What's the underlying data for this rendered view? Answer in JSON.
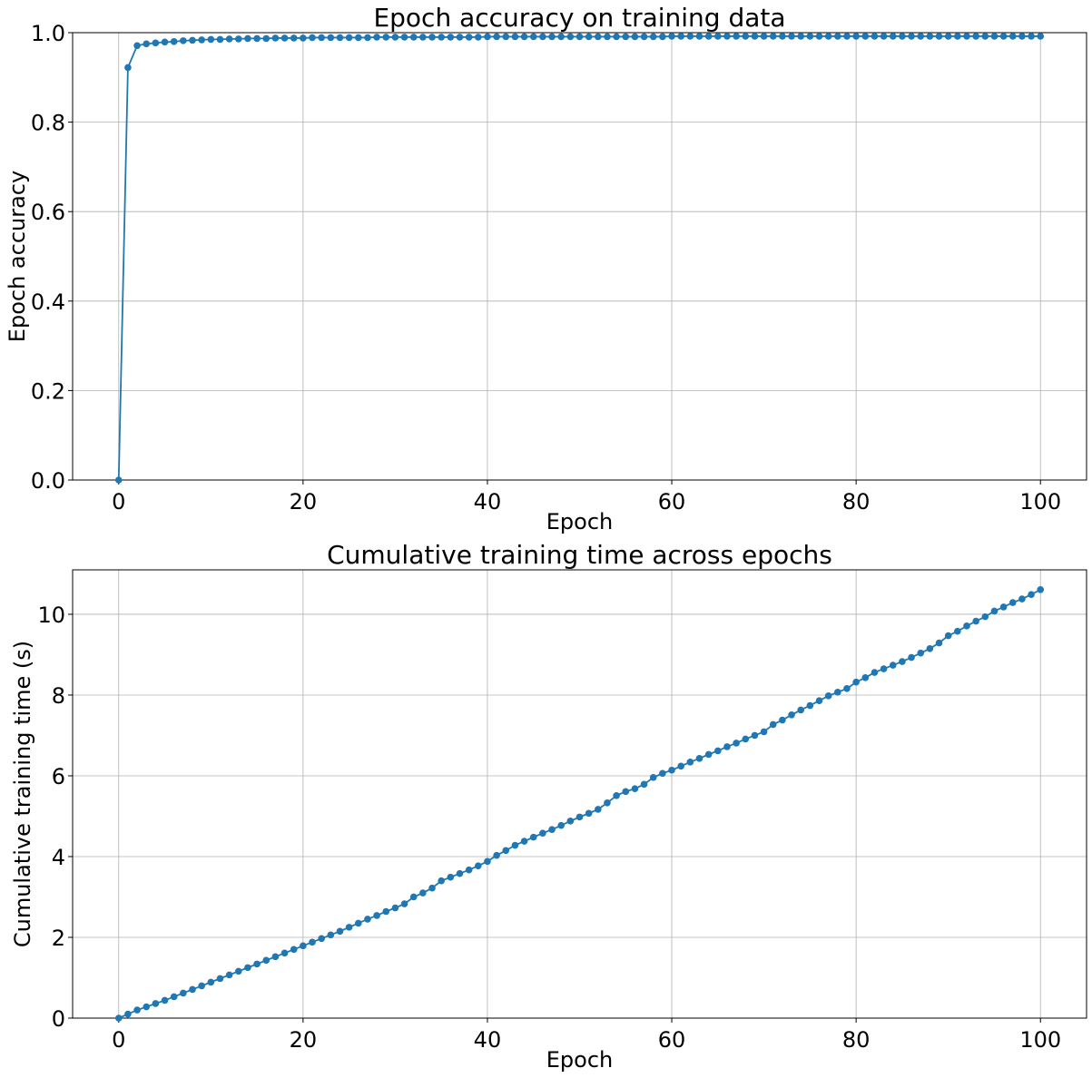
{
  "figure": {
    "background": "#ffffff"
  },
  "chart_data": [
    {
      "type": "line",
      "title": "Epoch accuracy on training data",
      "xlabel": "Epoch",
      "ylabel": "Epoch accuracy",
      "xlim": [
        -5,
        105
      ],
      "ylim": [
        0,
        1
      ],
      "grid": true,
      "marker": "circle",
      "color": "#1f77b4",
      "xticks": [
        0,
        20,
        40,
        60,
        80,
        100
      ],
      "xtick_labels": [
        "0",
        "20",
        "40",
        "60",
        "80",
        "100"
      ],
      "yticks": [
        0,
        0.2,
        0.4,
        0.6,
        0.8,
        1.0
      ],
      "ytick_labels": [
        "0.0",
        "0.2",
        "0.4",
        "0.6",
        "0.8",
        "1.0"
      ],
      "x": [
        0,
        1,
        2,
        3,
        4,
        5,
        6,
        7,
        8,
        9,
        10,
        11,
        12,
        13,
        14,
        15,
        16,
        17,
        18,
        19,
        20,
        21,
        22,
        23,
        24,
        25,
        26,
        27,
        28,
        29,
        30,
        31,
        32,
        33,
        34,
        35,
        36,
        37,
        38,
        39,
        40,
        41,
        42,
        43,
        44,
        45,
        46,
        47,
        48,
        49,
        50,
        51,
        52,
        53,
        54,
        55,
        56,
        57,
        58,
        59,
        60,
        61,
        62,
        63,
        64,
        65,
        66,
        67,
        68,
        69,
        70,
        71,
        72,
        73,
        74,
        75,
        76,
        77,
        78,
        79,
        80,
        81,
        82,
        83,
        84,
        85,
        86,
        87,
        88,
        89,
        90,
        91,
        92,
        93,
        94,
        95,
        96,
        97,
        98,
        99,
        100
      ],
      "y": [
        0.0,
        0.922,
        0.971,
        0.975,
        0.977,
        0.979,
        0.98,
        0.982,
        0.983,
        0.984,
        0.985,
        0.985,
        0.986,
        0.986,
        0.987,
        0.987,
        0.987,
        0.988,
        0.988,
        0.988,
        0.988,
        0.989,
        0.989,
        0.989,
        0.989,
        0.989,
        0.989,
        0.989,
        0.99,
        0.99,
        0.99,
        0.99,
        0.99,
        0.99,
        0.99,
        0.99,
        0.99,
        0.99,
        0.99,
        0.99,
        0.991,
        0.991,
        0.991,
        0.991,
        0.991,
        0.991,
        0.991,
        0.991,
        0.991,
        0.991,
        0.991,
        0.991,
        0.991,
        0.991,
        0.991,
        0.991,
        0.991,
        0.991,
        0.991,
        0.991,
        0.992,
        0.992,
        0.992,
        0.992,
        0.992,
        0.992,
        0.992,
        0.992,
        0.992,
        0.992,
        0.992,
        0.992,
        0.992,
        0.992,
        0.992,
        0.992,
        0.992,
        0.992,
        0.992,
        0.992,
        0.992,
        0.992,
        0.992,
        0.992,
        0.992,
        0.992,
        0.992,
        0.992,
        0.992,
        0.992,
        0.992,
        0.992,
        0.992,
        0.992,
        0.992,
        0.992,
        0.992,
        0.992,
        0.992,
        0.992,
        0.992
      ]
    },
    {
      "type": "line",
      "title": "Cumulative training time across epochs",
      "xlabel": "Epoch",
      "ylabel": "Cumulative training time (s)",
      "xlim": [
        -5,
        105
      ],
      "ylim": [
        0,
        11.1
      ],
      "grid": true,
      "marker": "circle",
      "color": "#1f77b4",
      "xticks": [
        0,
        20,
        40,
        60,
        80,
        100
      ],
      "xtick_labels": [
        "0",
        "20",
        "40",
        "60",
        "80",
        "100"
      ],
      "yticks": [
        0,
        2,
        4,
        6,
        8,
        10
      ],
      "ytick_labels": [
        "0",
        "2",
        "4",
        "6",
        "8",
        "10"
      ],
      "x": [
        0,
        1,
        2,
        3,
        4,
        5,
        6,
        7,
        8,
        9,
        10,
        11,
        12,
        13,
        14,
        15,
        16,
        17,
        18,
        19,
        20,
        21,
        22,
        23,
        24,
        25,
        26,
        27,
        28,
        29,
        30,
        31,
        32,
        33,
        34,
        35,
        36,
        37,
        38,
        39,
        40,
        41,
        42,
        43,
        44,
        45,
        46,
        47,
        48,
        49,
        50,
        51,
        52,
        53,
        54,
        55,
        56,
        57,
        58,
        59,
        60,
        61,
        62,
        63,
        64,
        65,
        66,
        67,
        68,
        69,
        70,
        71,
        72,
        73,
        74,
        75,
        76,
        77,
        78,
        79,
        80,
        81,
        82,
        83,
        84,
        85,
        86,
        87,
        88,
        89,
        90,
        91,
        92,
        93,
        94,
        95,
        96,
        97,
        98,
        99,
        100
      ],
      "y": [
        0.0,
        0.1,
        0.2,
        0.28,
        0.36,
        0.44,
        0.53,
        0.62,
        0.71,
        0.8,
        0.89,
        0.98,
        1.07,
        1.16,
        1.25,
        1.34,
        1.43,
        1.52,
        1.61,
        1.7,
        1.79,
        1.88,
        1.97,
        2.06,
        2.15,
        2.25,
        2.35,
        2.45,
        2.54,
        2.64,
        2.73,
        2.83,
        3.0,
        3.1,
        3.22,
        3.4,
        3.49,
        3.58,
        3.67,
        3.77,
        3.88,
        4.03,
        4.15,
        4.28,
        4.38,
        4.48,
        4.58,
        4.67,
        4.77,
        4.88,
        4.98,
        5.07,
        5.17,
        5.33,
        5.51,
        5.61,
        5.68,
        5.79,
        5.96,
        6.06,
        6.14,
        6.24,
        6.34,
        6.43,
        6.53,
        6.62,
        6.72,
        6.81,
        6.91,
        7.0,
        7.09,
        7.27,
        7.38,
        7.51,
        7.63,
        7.74,
        7.86,
        7.98,
        8.07,
        8.16,
        8.32,
        8.43,
        8.56,
        8.65,
        8.74,
        8.83,
        8.93,
        9.04,
        9.15,
        9.29,
        9.47,
        9.58,
        9.71,
        9.83,
        9.94,
        10.08,
        10.18,
        10.29,
        10.38,
        10.49,
        10.61
      ]
    }
  ]
}
